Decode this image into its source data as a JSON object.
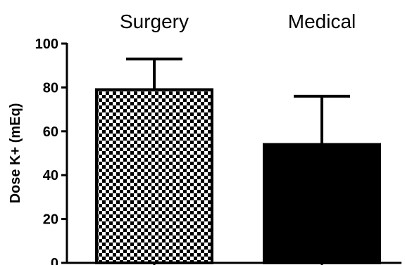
{
  "chart_data": {
    "type": "bar",
    "categories": [
      "Surgery",
      "Medical"
    ],
    "values": [
      79,
      54
    ],
    "error_upper": [
      93,
      76
    ],
    "ylabel": "Dose K+ (mEq)",
    "ylim": [
      0,
      100
    ],
    "yticks": [
      0,
      20,
      40,
      60,
      80,
      100
    ],
    "bar_styles": [
      "checkerboard",
      "solid-black"
    ],
    "grid": false,
    "legend": "none",
    "colors": {
      "bar_fill": "#000000",
      "axis": "#000000",
      "background": "#ffffff"
    }
  }
}
